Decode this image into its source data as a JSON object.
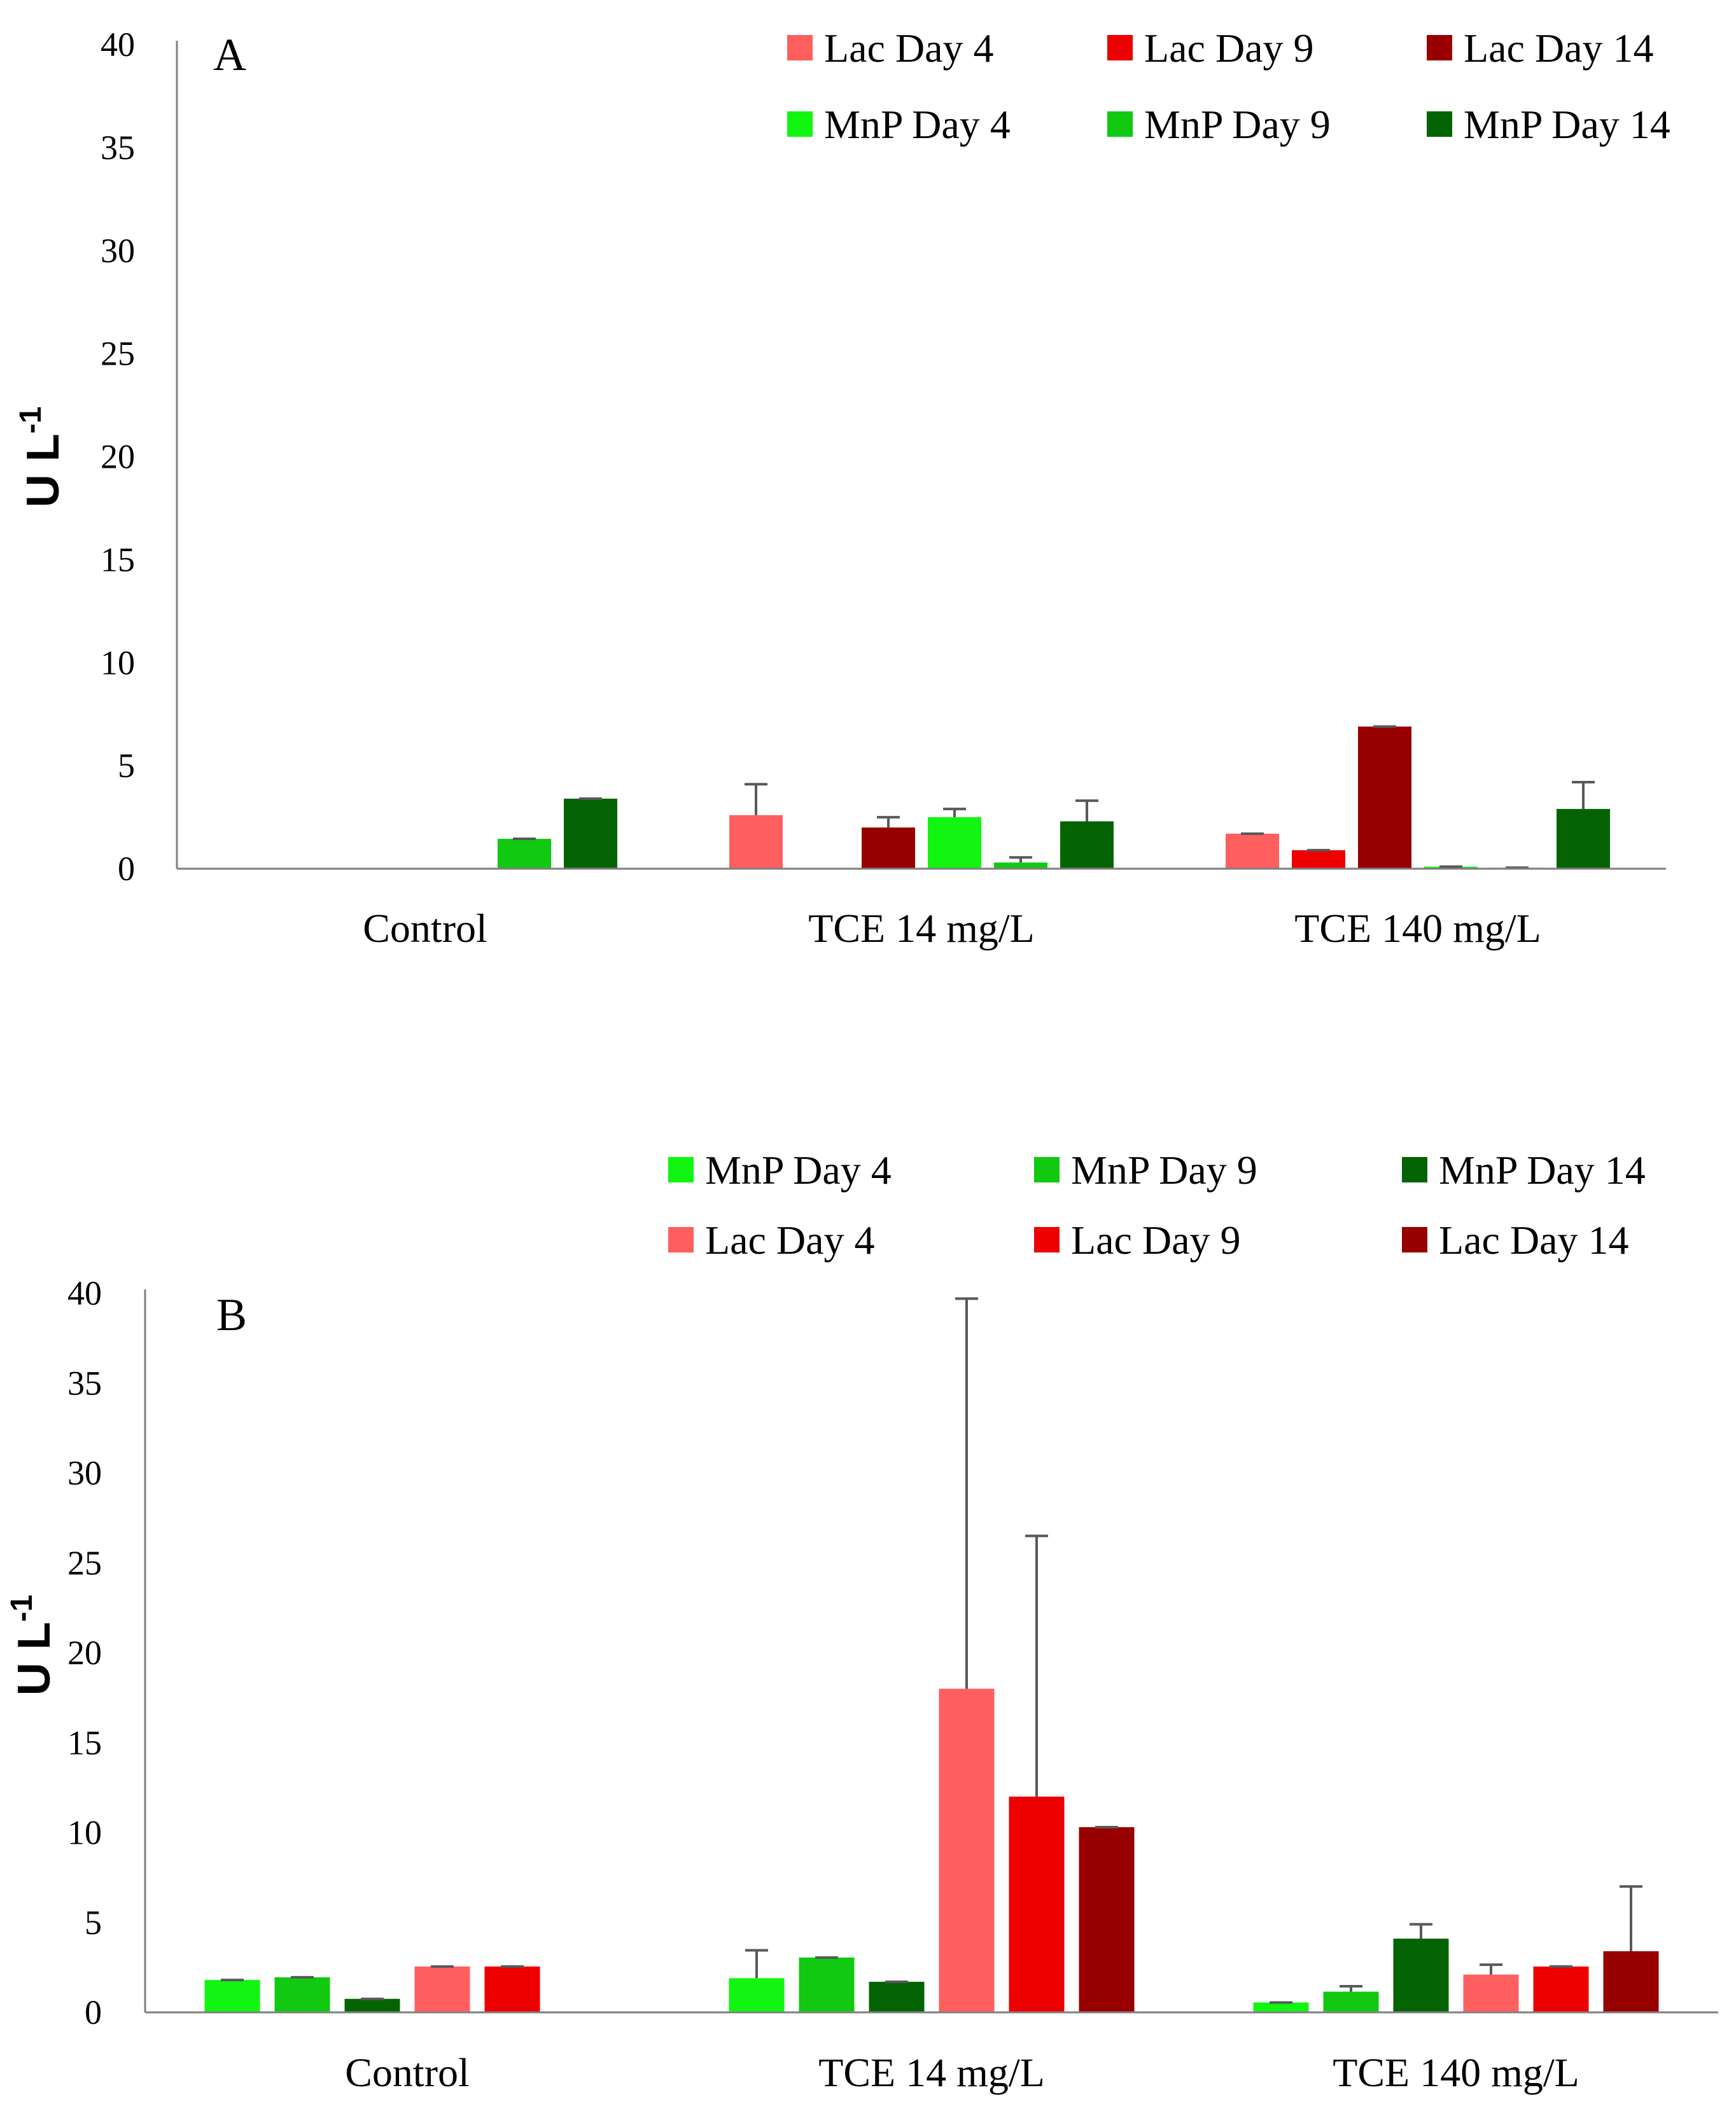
{
  "colors": {
    "lac_day4": "#ff5f5f",
    "lac_day9": "#ee0000",
    "lac_day14": "#980000",
    "mnp_day4": "#11f511",
    "mnp_day9": "#10c910",
    "mnp_day14": "#046404",
    "axis": "#7f7f7f",
    "error": "#595959"
  },
  "chart_data": [
    {
      "type": "bar",
      "panel_label": "A",
      "ylabel": "U L",
      "ylabel_sup": "-1",
      "ylim": [
        0,
        40
      ],
      "yticks": [
        "0",
        "5",
        "10",
        "15",
        "20",
        "25",
        "30",
        "35",
        "40"
      ],
      "categories": [
        "Control",
        "TCE 14 mg/L",
        "TCE 140 mg/L"
      ],
      "series": [
        {
          "name": "Lac Day 4",
          "color_key": "lac_day4",
          "values": [
            0,
            2.6,
            1.7
          ],
          "errors": [
            0,
            1.5,
            0
          ]
        },
        {
          "name": "Lac Day 9",
          "color_key": "lac_day9",
          "values": [
            0,
            0,
            0.9
          ],
          "errors": [
            0,
            0,
            0
          ]
        },
        {
          "name": "Lac Day 14",
          "color_key": "lac_day14",
          "values": [
            0,
            2.0,
            6.9
          ],
          "errors": [
            0,
            0.5,
            0
          ]
        },
        {
          "name": "MnP Day 4",
          "color_key": "mnp_day4",
          "values": [
            0,
            2.5,
            0.1
          ],
          "errors": [
            0,
            0.4,
            0
          ]
        },
        {
          "name": "MnP Day 9",
          "color_key": "mnp_day9",
          "values": [
            1.45,
            0.3,
            0.05
          ],
          "errors": [
            0,
            0.25,
            0
          ]
        },
        {
          "name": "MnP Day 14",
          "color_key": "mnp_day14",
          "values": [
            3.4,
            2.3,
            2.9
          ],
          "errors": [
            0,
            1.0,
            1.3
          ]
        }
      ],
      "legend_order": [
        0,
        1,
        2,
        3,
        4,
        5
      ],
      "legend_position": "top-right"
    },
    {
      "type": "bar",
      "panel_label": "B",
      "ylabel": "U L",
      "ylabel_sup": "-1",
      "ylim": [
        0,
        40
      ],
      "yticks": [
        "0",
        "5",
        "10",
        "15",
        "20",
        "25",
        "30",
        "35",
        "40"
      ],
      "categories": [
        "Control",
        "TCE 14 mg/L",
        "TCE 140 mg/L"
      ],
      "series": [
        {
          "name": "MnP Day 4",
          "color_key": "mnp_day4",
          "values": [
            1.8,
            1.9,
            0.55
          ],
          "errors": [
            0,
            1.55,
            0
          ]
        },
        {
          "name": "MnP Day 9",
          "color_key": "mnp_day9",
          "values": [
            1.95,
            3.05,
            1.15
          ],
          "errors": [
            0,
            0,
            0.3
          ]
        },
        {
          "name": "MnP Day 14",
          "color_key": "mnp_day14",
          "values": [
            0.75,
            1.7,
            4.1
          ],
          "errors": [
            0,
            0,
            0.8
          ]
        },
        {
          "name": "Lac Day 4",
          "color_key": "lac_day4",
          "values": [
            2.55,
            18.0,
            2.1
          ],
          "errors": [
            0,
            21.7,
            0.55
          ]
        },
        {
          "name": "Lac Day 9",
          "color_key": "lac_day9",
          "values": [
            2.55,
            12.0,
            2.55
          ],
          "errors": [
            0,
            14.5,
            0
          ]
        },
        {
          "name": "Lac Day 14",
          "color_key": "lac_day14",
          "values": [
            0,
            10.3,
            3.4
          ],
          "errors": [
            0,
            0,
            3.6
          ]
        }
      ],
      "legend_order": [
        0,
        1,
        2,
        3,
        4,
        5
      ],
      "legend_position": "top-right"
    }
  ]
}
